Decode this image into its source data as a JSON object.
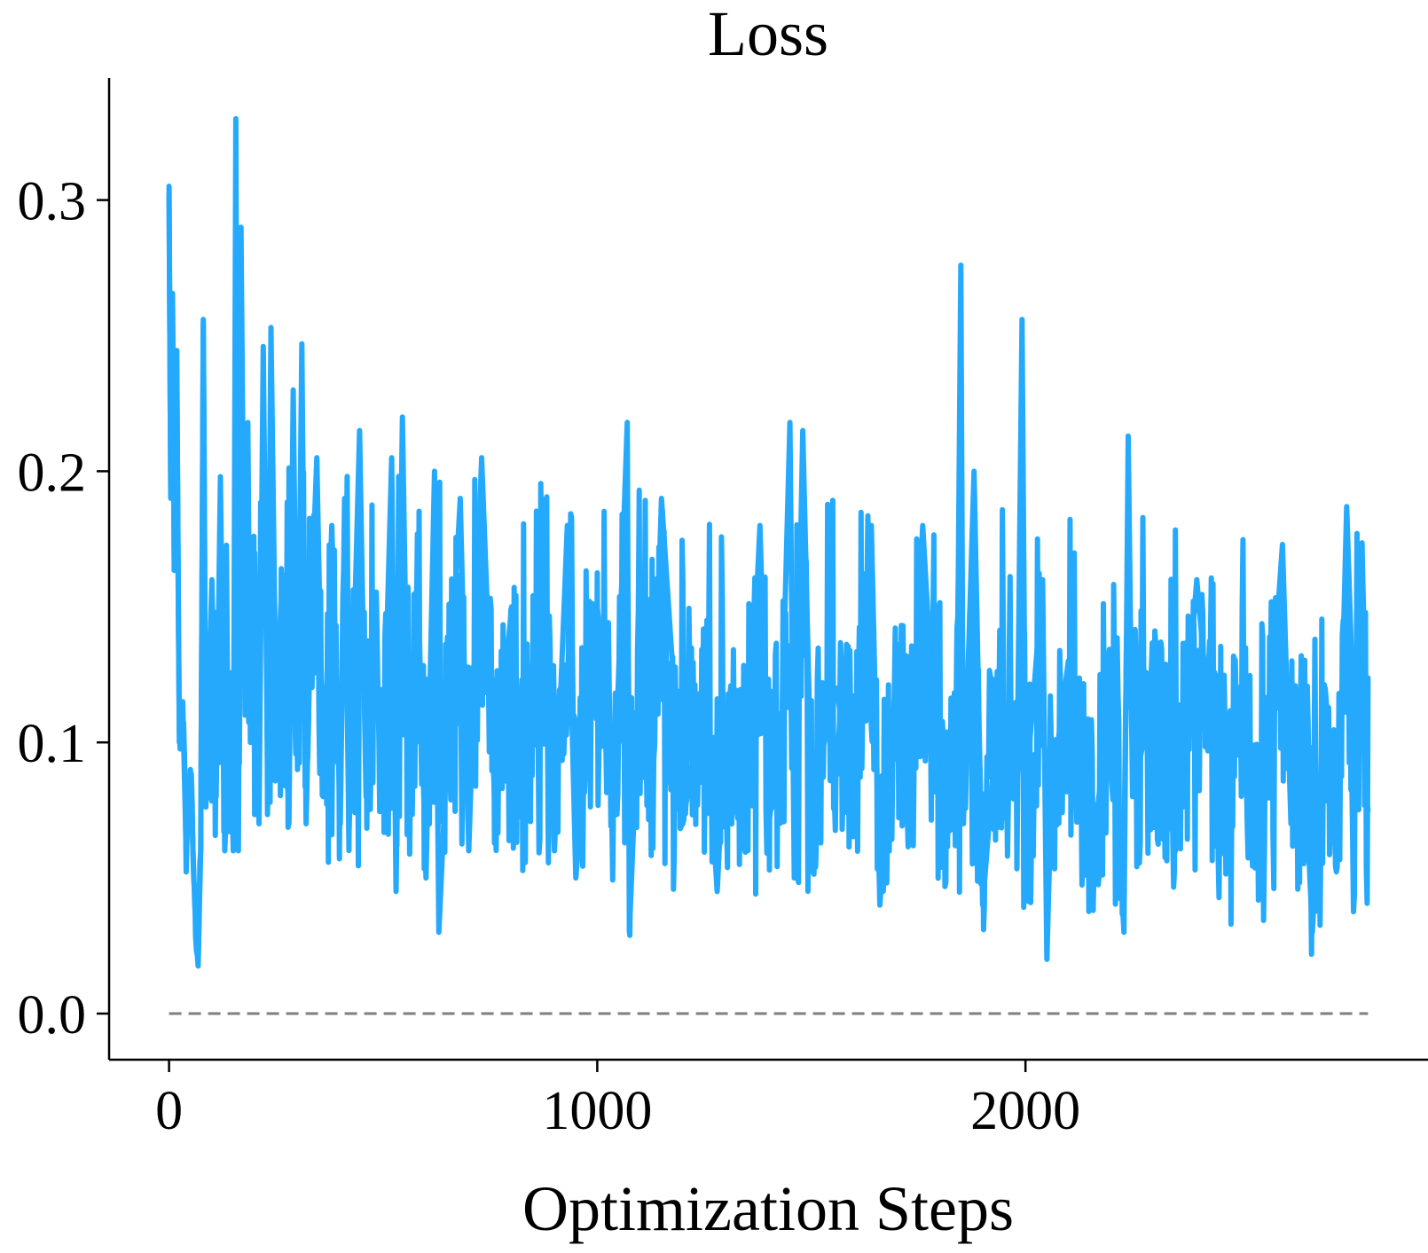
{
  "chart_data": {
    "type": "line",
    "title": "Loss",
    "xlabel": "Optimization Steps",
    "ylabel": "",
    "xlim": [
      -140,
      2940
    ],
    "ylim": [
      -0.017,
      0.345
    ],
    "x_ticks": [
      0,
      1000,
      2000
    ],
    "x_tick_labels": [
      "0",
      "1000",
      "2000"
    ],
    "y_ticks": [
      0.0,
      0.1,
      0.2,
      0.3
    ],
    "y_tick_labels": [
      "0.0",
      "0.1",
      "0.2",
      "0.3"
    ],
    "grid": false,
    "legend": "none",
    "reference_line": {
      "y": 0.0,
      "style": "dashed",
      "color": "#7f7f7f",
      "x_range": [
        0,
        2800
      ]
    },
    "series": [
      {
        "color": "#24a9fc",
        "num_steps": 2800,
        "x_step": 1,
        "keypoints": [
          [
            0,
            0.302
          ],
          [
            4,
            0.19
          ],
          [
            8,
            0.262
          ],
          [
            12,
            0.17
          ],
          [
            18,
            0.238
          ],
          [
            24,
            0.1
          ],
          [
            32,
            0.115
          ],
          [
            40,
            0.06
          ],
          [
            50,
            0.09
          ],
          [
            60,
            0.04
          ],
          [
            68,
            0.02
          ],
          [
            74,
            0.06
          ],
          [
            80,
            0.256
          ],
          [
            86,
            0.08
          ],
          [
            100,
            0.16
          ],
          [
            110,
            0.08
          ],
          [
            120,
            0.198
          ],
          [
            130,
            0.06
          ],
          [
            142,
            0.11
          ],
          [
            150,
            0.06
          ],
          [
            156,
            0.33
          ],
          [
            162,
            0.06
          ],
          [
            168,
            0.29
          ],
          [
            178,
            0.11
          ],
          [
            184,
            0.218
          ],
          [
            190,
            0.1
          ],
          [
            200,
            0.17
          ],
          [
            210,
            0.07
          ],
          [
            220,
            0.246
          ],
          [
            230,
            0.09
          ],
          [
            238,
            0.253
          ],
          [
            250,
            0.11
          ],
          [
            264,
            0.16
          ],
          [
            280,
            0.07
          ],
          [
            290,
            0.23
          ],
          [
            300,
            0.09
          ],
          [
            310,
            0.247
          ],
          [
            320,
            0.07
          ],
          [
            330,
            0.14
          ],
          [
            345,
            0.205
          ],
          [
            360,
            0.08
          ],
          [
            380,
            0.18
          ],
          [
            400,
            0.07
          ],
          [
            410,
            0.19
          ],
          [
            420,
            0.065
          ],
          [
            445,
            0.215
          ],
          [
            460,
            0.08
          ],
          [
            480,
            0.135
          ],
          [
            500,
            0.09
          ],
          [
            520,
            0.205
          ],
          [
            530,
            0.045
          ],
          [
            545,
            0.22
          ],
          [
            560,
            0.07
          ],
          [
            580,
            0.165
          ],
          [
            600,
            0.05
          ],
          [
            620,
            0.2
          ],
          [
            630,
            0.03
          ],
          [
            650,
            0.1
          ],
          [
            680,
            0.19
          ],
          [
            700,
            0.06
          ],
          [
            730,
            0.205
          ],
          [
            760,
            0.08
          ],
          [
            800,
            0.15
          ],
          [
            830,
            0.07
          ],
          [
            870,
            0.19
          ],
          [
            900,
            0.06
          ],
          [
            930,
            0.18
          ],
          [
            950,
            0.05
          ],
          [
            1000,
            0.15
          ],
          [
            1040,
            0.08
          ],
          [
            1070,
            0.218
          ],
          [
            1075,
            0.03
          ],
          [
            1100,
            0.13
          ],
          [
            1130,
            0.09
          ],
          [
            1150,
            0.19
          ],
          [
            1200,
            0.07
          ],
          [
            1250,
            0.12
          ],
          [
            1280,
            0.045
          ],
          [
            1300,
            0.11
          ],
          [
            1350,
            0.08
          ],
          [
            1380,
            0.18
          ],
          [
            1400,
            0.07
          ],
          [
            1430,
            0.1
          ],
          [
            1450,
            0.218
          ],
          [
            1460,
            0.05
          ],
          [
            1480,
            0.215
          ],
          [
            1500,
            0.08
          ],
          [
            1560,
            0.12
          ],
          [
            1600,
            0.07
          ],
          [
            1640,
            0.18
          ],
          [
            1660,
            0.04
          ],
          [
            1700,
            0.13
          ],
          [
            1730,
            0.08
          ],
          [
            1760,
            0.18
          ],
          [
            1800,
            0.07
          ],
          [
            1840,
            0.1
          ],
          [
            1849,
            0.276
          ],
          [
            1855,
            0.07
          ],
          [
            1880,
            0.2
          ],
          [
            1900,
            0.04
          ],
          [
            1940,
            0.12
          ],
          [
            1980,
            0.08
          ],
          [
            1992,
            0.256
          ],
          [
            2000,
            0.08
          ],
          [
            2040,
            0.16
          ],
          [
            2050,
            0.02
          ],
          [
            2060,
            0.08
          ],
          [
            2100,
            0.13
          ],
          [
            2150,
            0.05
          ],
          [
            2200,
            0.12
          ],
          [
            2230,
            0.03
          ],
          [
            2240,
            0.213
          ],
          [
            2250,
            0.08
          ],
          [
            2300,
            0.12
          ],
          [
            2350,
            0.06
          ],
          [
            2400,
            0.16
          ],
          [
            2450,
            0.07
          ],
          [
            2500,
            0.12
          ],
          [
            2550,
            0.06
          ],
          [
            2600,
            0.173
          ],
          [
            2620,
            0.07
          ],
          [
            2650,
            0.1
          ],
          [
            2670,
            0.03
          ],
          [
            2700,
            0.12
          ],
          [
            2730,
            0.06
          ],
          [
            2750,
            0.187
          ],
          [
            2770,
            0.09
          ],
          [
            2785,
            0.173
          ],
          [
            2795,
            0.08
          ],
          [
            2800,
            0.075
          ]
        ]
      }
    ]
  }
}
